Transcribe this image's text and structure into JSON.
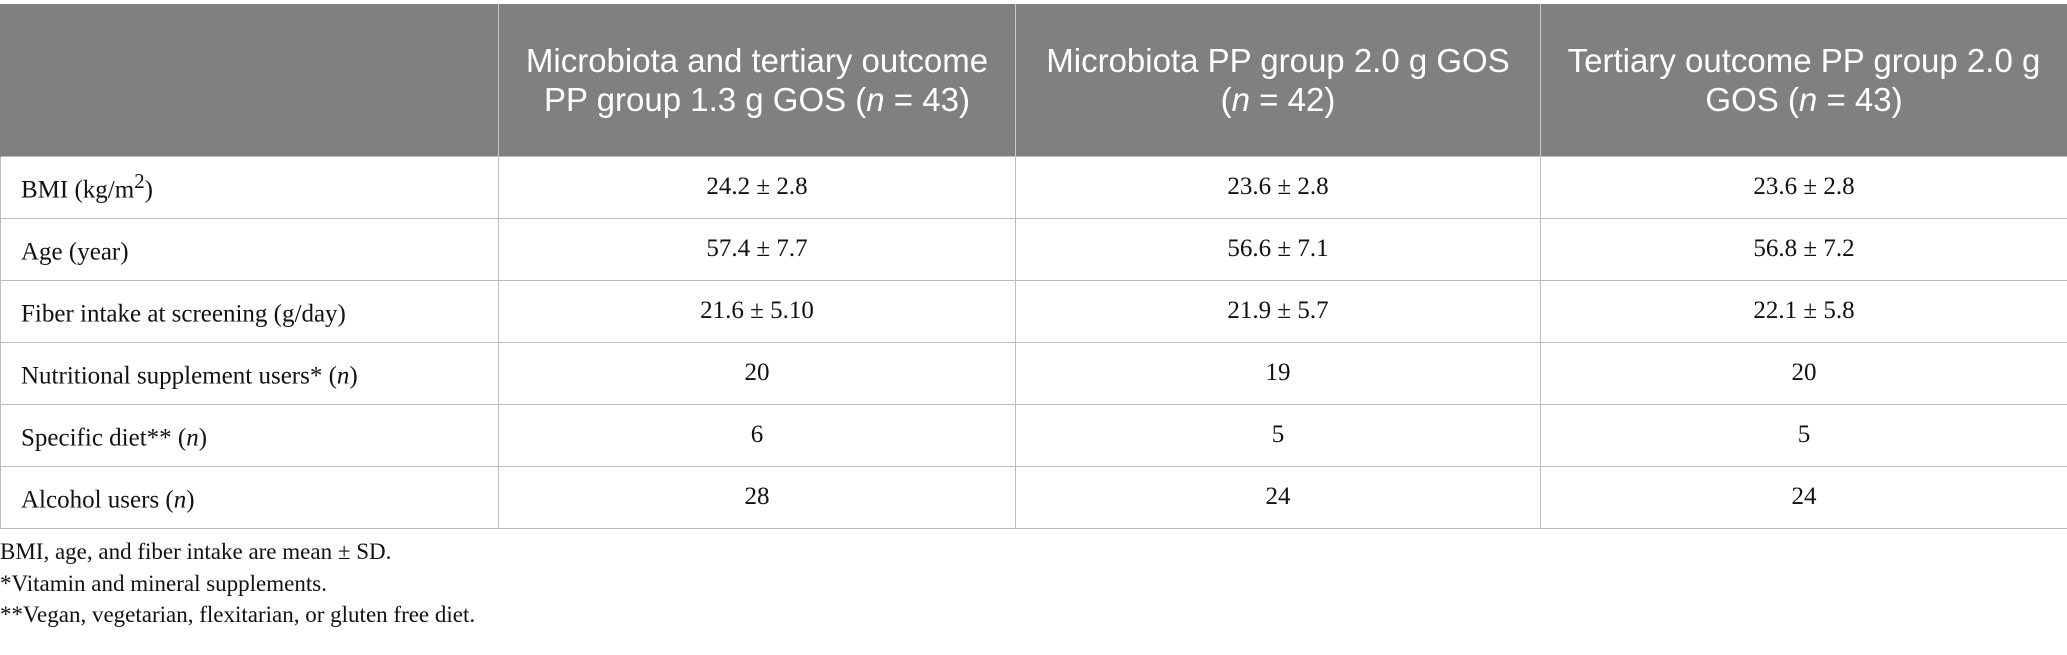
{
  "table": {
    "headers": [
      {
        "pre": "",
        "italic": "",
        "post": ""
      },
      {
        "pre": "Microbiota and tertiary outcome PP group 1.3 g GOS (",
        "italic": "n",
        "post": " = 43)"
      },
      {
        "pre": "Microbiota PP group 2.0 g GOS (",
        "italic": "n",
        "post": " = 42)"
      },
      {
        "pre": "Tertiary outcome PP group 2.0 g GOS (",
        "italic": "n",
        "post": " = 43)"
      }
    ],
    "rows": [
      {
        "label": {
          "pre": "BMI (kg/m",
          "sup": "2",
          "post": ")",
          "italic": "",
          "end": ""
        },
        "values": [
          "24.2 ± 2.8",
          "23.6 ± 2.8",
          "23.6 ± 2.8"
        ]
      },
      {
        "label": {
          "pre": "Age (year)",
          "sup": "",
          "post": "",
          "italic": "",
          "end": ""
        },
        "values": [
          "57.4 ± 7.7",
          "56.6 ± 7.1",
          "56.8 ± 7.2"
        ]
      },
      {
        "label": {
          "pre": "Fiber intake at screening (g/day)",
          "sup": "",
          "post": "",
          "italic": "",
          "end": ""
        },
        "values": [
          "21.6 ± 5.10",
          "21.9 ± 5.7",
          "22.1 ± 5.8"
        ]
      },
      {
        "label": {
          "pre": "Nutritional supplement users* (",
          "sup": "",
          "post": "",
          "italic": "n",
          "end": ")"
        },
        "values": [
          "20",
          "19",
          "20"
        ]
      },
      {
        "label": {
          "pre": "Specific diet** (",
          "sup": "",
          "post": "",
          "italic": "n",
          "end": ")"
        },
        "values": [
          "6",
          "5",
          "5"
        ]
      },
      {
        "label": {
          "pre": "Alcohol users (",
          "sup": "",
          "post": "",
          "italic": "n",
          "end": ")"
        },
        "values": [
          "28",
          "24",
          "24"
        ]
      }
    ]
  },
  "footnotes": [
    "BMI, age, and fiber intake are mean ± SD.",
    "*Vitamin and mineral supplements.",
    "**Vegan, vegetarian, flexitarian, or gluten free diet."
  ]
}
